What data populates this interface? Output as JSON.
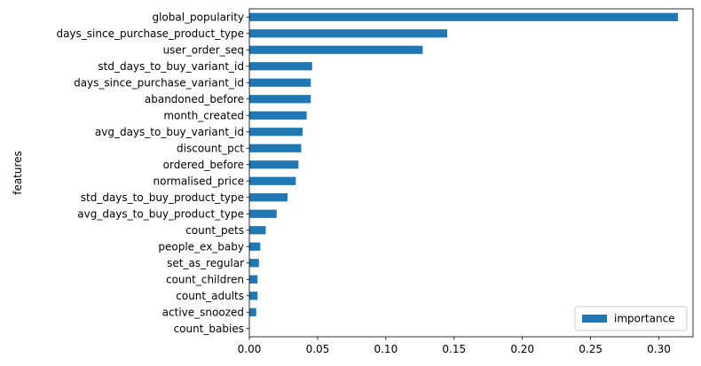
{
  "chart_data": {
    "type": "bar",
    "orientation": "horizontal",
    "xlabel": "",
    "ylabel": "features",
    "xlim": [
      0.0,
      0.325
    ],
    "xticks": [
      0.0,
      0.05,
      0.1,
      0.15,
      0.2,
      0.25,
      0.3
    ],
    "xtick_labels": [
      "0.00",
      "0.05",
      "0.10",
      "0.15",
      "0.20",
      "0.25",
      "0.30"
    ],
    "grid": false,
    "legend_position": "lower-right",
    "bar_color": "#1f77b4",
    "categories": [
      "global_popularity",
      "days_since_purchase_product_type",
      "user_order_seq",
      "std_days_to_buy_variant_id",
      "days_since_purchase_variant_id",
      "abandoned_before",
      "month_created",
      "avg_days_to_buy_variant_id",
      "discount_pct",
      "ordered_before",
      "normalised_price",
      "std_days_to_buy_product_type",
      "avg_days_to_buy_product_type",
      "count_pets",
      "people_ex_baby",
      "set_as_regular",
      "count_children",
      "count_adults",
      "active_snoozed",
      "count_babies"
    ],
    "series": [
      {
        "name": "importance",
        "values": [
          0.314,
          0.145,
          0.127,
          0.046,
          0.045,
          0.045,
          0.042,
          0.039,
          0.038,
          0.036,
          0.034,
          0.028,
          0.02,
          0.012,
          0.008,
          0.007,
          0.006,
          0.006,
          0.005,
          0.0
        ]
      }
    ]
  }
}
